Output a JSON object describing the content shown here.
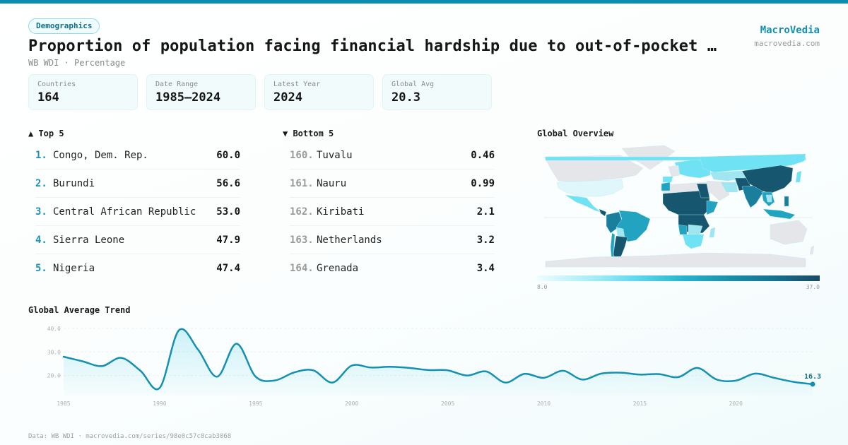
{
  "header": {
    "category_badge": "Demographics",
    "title": "Proportion of population facing financial hardship due to out-of-pocket …",
    "subtitle": "WB WDI · Percentage",
    "brand": "MacroVedia",
    "brand_url": "macrovedia.com"
  },
  "stats": [
    {
      "label": "Countries",
      "value": "164"
    },
    {
      "label": "Date Range",
      "value": "1985–2024"
    },
    {
      "label": "Latest Year",
      "value": "2024"
    },
    {
      "label": "Global Avg",
      "value": "20.3"
    }
  ],
  "top5": {
    "heading": "▲ Top 5",
    "items": [
      {
        "rank": "1.",
        "name": "Congo, Dem. Rep.",
        "value": "60.0"
      },
      {
        "rank": "2.",
        "name": "Burundi",
        "value": "56.6"
      },
      {
        "rank": "3.",
        "name": "Central African Republic",
        "value": "53.0"
      },
      {
        "rank": "4.",
        "name": "Sierra Leone",
        "value": "47.9"
      },
      {
        "rank": "5.",
        "name": "Nigeria",
        "value": "47.4"
      }
    ]
  },
  "bottom5": {
    "heading": "▼ Bottom 5",
    "items": [
      {
        "rank": "160.",
        "name": "Tuvalu",
        "value": "0.46"
      },
      {
        "rank": "161.",
        "name": "Nauru",
        "value": "0.99"
      },
      {
        "rank": "162.",
        "name": "Kiribati",
        "value": "2.1"
      },
      {
        "rank": "163.",
        "name": "Netherlands",
        "value": "3.2"
      },
      {
        "rank": "164.",
        "name": "Grenada",
        "value": "3.4"
      }
    ]
  },
  "map": {
    "title": "Global Overview",
    "scale_min": "8.0",
    "scale_max": "37.0",
    "colors": {
      "none": "#e4e6ea",
      "low": "#6fe2f3",
      "lowmid": "#9fe6f1",
      "mid": "#22a4c0",
      "high": "#1a7f9c",
      "top": "#17566f"
    }
  },
  "chart_data": {
    "type": "area",
    "title": "Global Average Trend",
    "xlabel": "",
    "ylabel": "",
    "x": [
      1985,
      1986,
      1987,
      1988,
      1989,
      1990,
      1991,
      1992,
      1993,
      1994,
      1995,
      1996,
      1997,
      1998,
      1999,
      2000,
      2001,
      2002,
      2003,
      2004,
      2005,
      2006,
      2007,
      2008,
      2009,
      2010,
      2011,
      2012,
      2013,
      2014,
      2015,
      2016,
      2017,
      2018,
      2019,
      2020,
      2021,
      2022,
      2023,
      2024
    ],
    "series": [
      {
        "name": "Global Average",
        "values": [
          28.0,
          26.0,
          24.0,
          27.5,
          22.0,
          14.7,
          39.2,
          31.0,
          19.5,
          33.5,
          19.5,
          17.9,
          21.3,
          22.2,
          17.0,
          24.2,
          23.4,
          23.7,
          23.2,
          22.3,
          22.2,
          20.0,
          21.7,
          17.0,
          20.7,
          19.0,
          22.0,
          18.3,
          20.8,
          21.2,
          20.4,
          20.6,
          19.3,
          23.2,
          18.3,
          17.8,
          20.8,
          19.0,
          17.3,
          16.3
        ]
      }
    ],
    "yticks": [
      "20.0",
      "30.0",
      "40.0"
    ],
    "ytick_values": [
      20,
      30,
      40
    ],
    "xticks": [
      "1985",
      "1990",
      "1995",
      "2000",
      "2005",
      "2010",
      "2015",
      "2020"
    ],
    "xtick_values": [
      1985,
      1990,
      1995,
      2000,
      2005,
      2010,
      2015,
      2020
    ],
    "ylim": [
      10,
      40
    ],
    "xlim": [
      1985,
      2024
    ],
    "last_label": "16.3",
    "grid": true,
    "color": "#1490b2"
  },
  "footer": {
    "source": "Data: WB WDI · macrovedia.com/series/98e0c57c8cab3068"
  }
}
